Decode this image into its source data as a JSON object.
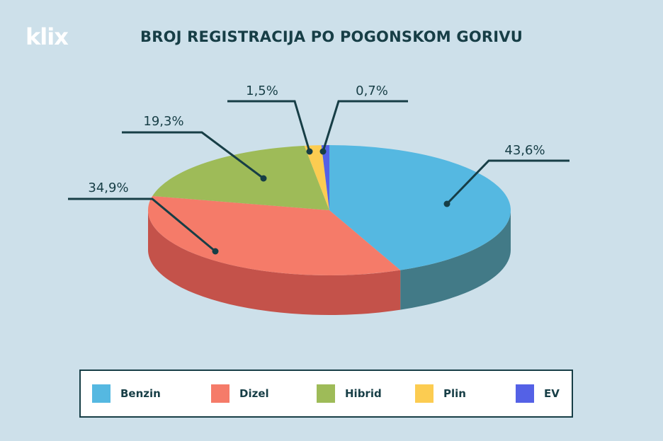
{
  "header": {
    "logo": "klix",
    "title": "BROJ REGISTRACIJA PO POGONSKOM GORIVU"
  },
  "chart_data": {
    "type": "pie",
    "title": "BROJ REGISTRACIJA PO POGONSKOM GORIVU",
    "categories": [
      "Benzin",
      "Dizel",
      "Hibrid",
      "Plin",
      "EV"
    ],
    "values": [
      43.6,
      34.9,
      19.3,
      1.5,
      0.7
    ],
    "labels": [
      "43,6%",
      "34,9%",
      "19,3%",
      "1,5%",
      "0,7%"
    ],
    "colors": [
      "#55b8e1",
      "#f57b69",
      "#9ebb58",
      "#fccc51",
      "#5461e6"
    ],
    "side_colors": [
      "#427a87",
      "#c4524a",
      "#7e9646",
      "#c9a340",
      "#434eb8"
    ],
    "legend": "bottom",
    "style": "3d"
  },
  "legend": {
    "items": [
      {
        "label": "Benzin",
        "color": "#55b8e1"
      },
      {
        "label": "Dizel",
        "color": "#f57b69"
      },
      {
        "label": "Hibrid",
        "color": "#9ebb58"
      },
      {
        "label": "Plin",
        "color": "#fccc51"
      },
      {
        "label": "EV",
        "color": "#5461e6"
      }
    ]
  }
}
